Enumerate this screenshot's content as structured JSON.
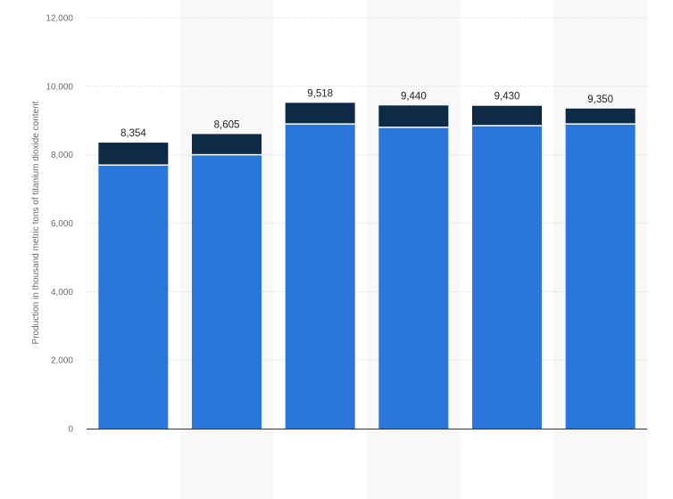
{
  "chart_data": {
    "type": "bar",
    "stacked": true,
    "categories": [
      "",
      "",
      "",
      "",
      "",
      ""
    ],
    "series": [
      {
        "values": [
          7700,
          8000,
          8900,
          8800,
          8850,
          8900
        ],
        "color": "#2a76dd"
      },
      {
        "values": [
          654,
          605,
          618,
          640,
          580,
          450
        ],
        "color": "#0e2a47"
      }
    ],
    "totals": [
      8354,
      8605,
      9518,
      9440,
      9430,
      9350
    ],
    "total_labels": [
      "8,354",
      "8,605",
      "9,518",
      "9,440",
      "9,430",
      "9,350"
    ],
    "ylabel": "Production in thousand metric tons of titanium dioxide content",
    "ylim": [
      0,
      12000
    ],
    "yticks": [
      0,
      2000,
      4000,
      6000,
      8000,
      10000,
      12000
    ],
    "ytick_labels": [
      "0",
      "2,000",
      "4,000",
      "6,000",
      "8,000",
      "10,000",
      "12,000"
    ],
    "grid": true,
    "grid_style": "dotted horizontal",
    "alternating_column_bands": true,
    "band_color": "#f8f8f8",
    "gridline_color": "#cfcfcf",
    "baseline_color": "#333333"
  }
}
